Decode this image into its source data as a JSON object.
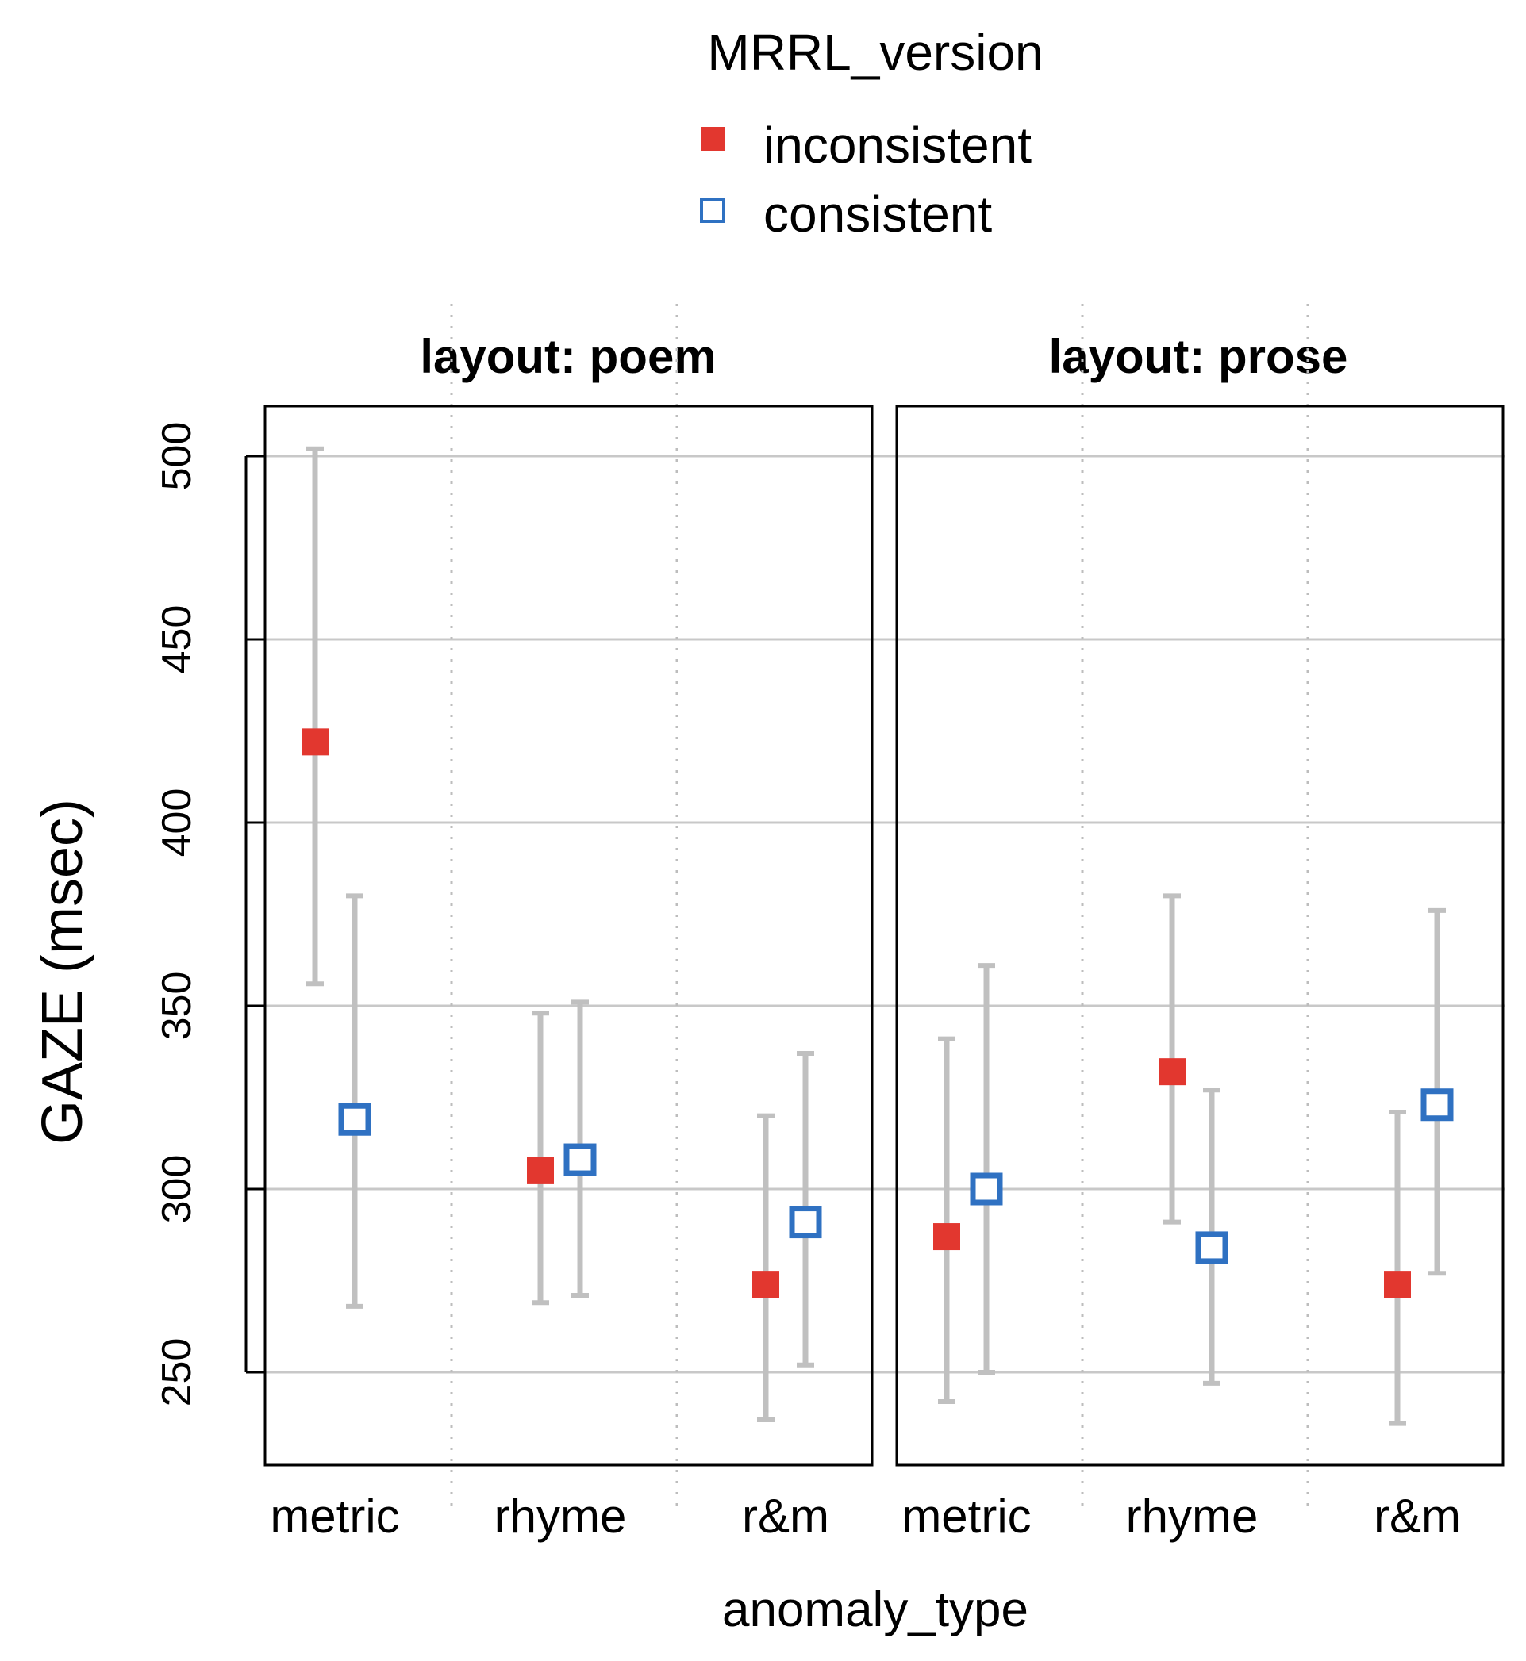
{
  "chart_data": {
    "type": "scatter",
    "subtype": "point-with-error-bars",
    "legend": {
      "title": "MRRL_version",
      "placement": "top-center",
      "items": [
        {
          "label": "inconsistent",
          "color": "#e2372f",
          "marker": "filled-square"
        },
        {
          "label": "consistent",
          "color": "#2f71c2",
          "marker": "open-square"
        }
      ]
    },
    "ylabel": "GAZE (msec)",
    "xlabel": "anomaly_type",
    "ylim": [
      225,
      510
    ],
    "yticks": [
      "250",
      "300",
      "350",
      "400",
      "450",
      "500"
    ],
    "ytick_values": [
      250,
      300,
      350,
      400,
      450,
      500
    ],
    "categories": [
      "metric",
      "rhyme",
      "r&m"
    ],
    "grid": "horizontal-solid, vertical-dotted",
    "errorbar_color": "#c0c0c0",
    "panels": [
      {
        "strip": "layout: poem",
        "series": [
          {
            "name": "inconsistent",
            "values": [
              422,
              305,
              274
            ],
            "lower": [
              356,
              269,
              237
            ],
            "upper": [
              502,
              348,
              320
            ]
          },
          {
            "name": "consistent",
            "values": [
              319,
              308,
              291
            ],
            "lower": [
              268,
              271,
              252
            ],
            "upper": [
              380,
              351,
              337
            ]
          }
        ]
      },
      {
        "strip": "layout: prose",
        "series": [
          {
            "name": "inconsistent",
            "values": [
              287,
              332,
              274
            ],
            "lower": [
              242,
              291,
              236
            ],
            "upper": [
              341,
              380,
              321
            ]
          },
          {
            "name": "consistent",
            "values": [
              300,
              284,
              323
            ],
            "lower": [
              250,
              247,
              277
            ],
            "upper": [
              361,
              327,
              376
            ]
          }
        ]
      }
    ]
  }
}
